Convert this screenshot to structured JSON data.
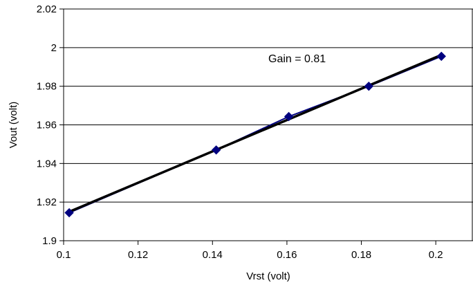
{
  "chart_data": {
    "type": "scatter",
    "title": "",
    "xlabel": "Vrst (volt)",
    "ylabel": "Vout (volt)",
    "xlim": [
      0.1,
      0.21
    ],
    "ylim": [
      1.9,
      2.02
    ],
    "xticks": [
      0.1,
      0.12,
      0.14,
      0.16,
      0.18,
      0.2
    ],
    "xtick_labels": [
      "0.1",
      "0.12",
      "0.14",
      "0.16",
      "0.18",
      "0.2"
    ],
    "yticks": [
      1.9,
      1.92,
      1.94,
      1.96,
      1.98,
      2.0,
      2.02
    ],
    "ytick_labels": [
      "1.9",
      "1.92",
      "1.94",
      "1.96",
      "1.98",
      "2",
      "2.02"
    ],
    "grid": "horizontal",
    "legend": "none",
    "series": [
      {
        "kind": "line-markers",
        "marker": "diamond",
        "color": "#00007f",
        "points": [
          {
            "x": 0.1015,
            "y": 1.9145
          },
          {
            "x": 0.141,
            "y": 1.947
          },
          {
            "x": 0.1605,
            "y": 1.9643
          },
          {
            "x": 0.182,
            "y": 1.98
          },
          {
            "x": 0.2015,
            "y": 1.9955
          }
        ]
      },
      {
        "kind": "trendline",
        "color": "#000000",
        "points": [
          {
            "x": 0.1015,
            "y": 1.915
          },
          {
            "x": 0.2015,
            "y": 1.9962
          }
        ]
      }
    ],
    "annotations": [
      {
        "text": "Gain =  0.81",
        "x": 0.155,
        "y": 1.9925
      }
    ]
  }
}
